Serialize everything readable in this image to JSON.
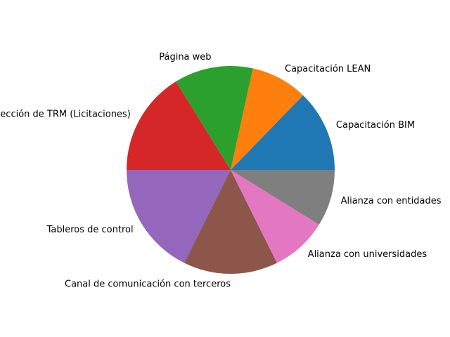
{
  "chart_data": {
    "type": "pie",
    "slices": [
      {
        "label": "Capacitación BIM",
        "value": 13,
        "color": "#1f77b4"
      },
      {
        "label": "Capacitación LEAN",
        "value": 9,
        "color": "#ff7f0e"
      },
      {
        "label": "Página web",
        "value": 12.5,
        "color": "#2ca02c"
      },
      {
        "label": "Proyección de TRM (Licitaciones)",
        "value": 16.5,
        "color": "#d62728"
      },
      {
        "label": "Tableros de control",
        "value": 18,
        "color": "#9467bd"
      },
      {
        "label": "Canal de comunicación con terceros",
        "value": 15,
        "color": "#8c564b"
      },
      {
        "label": "Alianza con universidades",
        "value": 9,
        "color": "#e377c2"
      },
      {
        "label": "Alianza con entidades",
        "value": 9,
        "color": "#7f7f7f"
      }
    ],
    "start_angle_deg": 0,
    "direction": "counterclockwise"
  }
}
